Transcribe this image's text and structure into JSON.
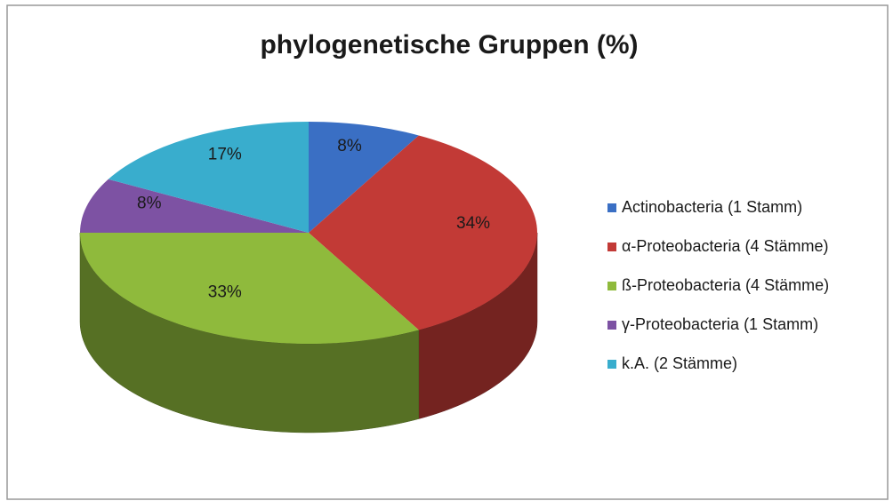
{
  "chart_data": {
    "type": "pie",
    "title": "phylogenetische Gruppen (%)",
    "categories": [
      "Actinobacteria (1 Stamm)",
      "α-Proteobacteria (4 Stämme)",
      "ß-Proteobacteria (4 Stämme)",
      "γ-Proteobacteria (1 Stamm)",
      "k.A. (2 Stämme)"
    ],
    "values": [
      8,
      34,
      33,
      8,
      17
    ],
    "value_labels": [
      "8%",
      "34%",
      "33%",
      "8%",
      "17%"
    ],
    "colors": [
      "#3a6fc4",
      "#c23a36",
      "#8fba3c",
      "#7d52a3",
      "#39adcd"
    ],
    "legend": "right"
  }
}
